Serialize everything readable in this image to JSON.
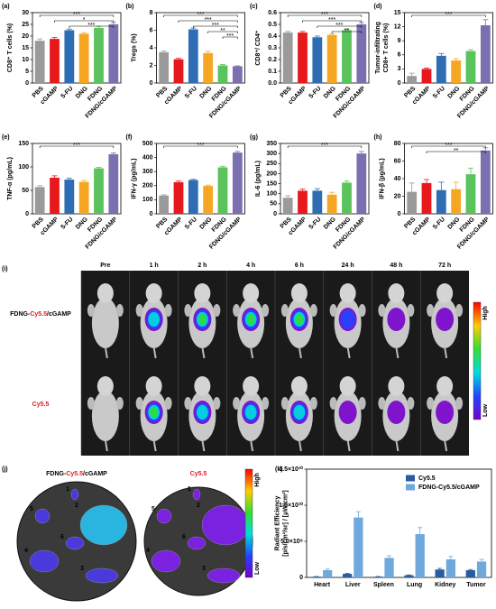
{
  "chart_data": [
    {
      "panel": "(a)",
      "type": "bar",
      "ylabel": "CD8⁺ T cells (%)",
      "categories": [
        "PBS",
        "cGAMP",
        "5-FU",
        "DNG",
        "FDNG",
        "FDNG/cGAMP"
      ],
      "colors": [
        "#9a9a9a",
        "#e8191c",
        "#2e6db4",
        "#f5a623",
        "#5bc35b",
        "#7b6fb0"
      ],
      "values": [
        18,
        18.8,
        22.5,
        21,
        23.5,
        25
      ],
      "errors": [
        0.8,
        0.6,
        0.5,
        0.5,
        0.6,
        0.8
      ],
      "ylim": [
        0,
        30
      ],
      "yticks": [
        0,
        5,
        10,
        15,
        20,
        25,
        30
      ],
      "annotations": [
        "***",
        "*",
        "***"
      ]
    },
    {
      "panel": "(b)",
      "type": "bar",
      "ylabel": "Tregs (%)",
      "categories": [
        "PBS",
        "cGAMP",
        "5-FU",
        "DNG",
        "FDNG",
        "FDNG/cGAMP"
      ],
      "colors": [
        "#9a9a9a",
        "#e8191c",
        "#2e6db4",
        "#f5a623",
        "#5bc35b",
        "#7b6fb0"
      ],
      "values": [
        3.5,
        2.7,
        6.1,
        3.4,
        2.0,
        1.9
      ],
      "errors": [
        0.15,
        0.1,
        0.15,
        0.2,
        0.1,
        0.05
      ],
      "ylim": [
        0,
        8
      ],
      "yticks": [
        0,
        2,
        4,
        6,
        8
      ],
      "annotations": [
        "***",
        "***",
        "***",
        "**",
        "***"
      ]
    },
    {
      "panel": "(c)",
      "type": "bar",
      "ylabel": "CD8⁺/ CD4⁺",
      "categories": [
        "PBS",
        "cGAMP",
        "5-FU",
        "DNG",
        "FDNG",
        "FDNG/cGAMP"
      ],
      "colors": [
        "#9a9a9a",
        "#e8191c",
        "#2e6db4",
        "#f5a623",
        "#5bc35b",
        "#7b6fb0"
      ],
      "values": [
        0.43,
        0.43,
        0.39,
        0.41,
        0.45,
        0.5
      ],
      "errors": [
        0.01,
        0.01,
        0.01,
        0.01,
        0.01,
        0.015
      ],
      "ylim": [
        0,
        0.6
      ],
      "yticks": [
        {
          "value": 0,
          "label": "0.0"
        },
        0.1,
        0.2,
        0.3,
        0.4,
        0.5,
        0.6
      ],
      "annotations": [
        "***",
        "***",
        "***",
        "**"
      ]
    },
    {
      "panel": "(d)",
      "type": "bar",
      "ylabel": [
        "Tumor-infiltrating",
        "CD8+ T cells (%)"
      ],
      "categories": [
        "PBS",
        "cGAMP",
        "5-FU",
        "DNG",
        "FDNG",
        "FDNG/cGAMP"
      ],
      "colors": [
        "#9a9a9a",
        "#e8191c",
        "#2e6db4",
        "#f5a623",
        "#5bc35b",
        "#7b6fb0"
      ],
      "values": [
        1.5,
        3,
        5.8,
        4.8,
        6.8,
        12.3
      ],
      "errors": [
        0.6,
        0.2,
        0.5,
        0.4,
        0.3,
        1.2
      ],
      "ylim": [
        0,
        15
      ],
      "yticks": [
        0,
        3,
        6,
        9,
        12,
        15
      ],
      "annotations": [
        "***"
      ]
    },
    {
      "panel": "(e)",
      "type": "bar",
      "ylabel": "TNF-α (pg/mL)",
      "categories": [
        "PBS",
        "cGAMP",
        "5-FU",
        "DNG",
        "FDNG",
        "FDNG/cGAMP"
      ],
      "colors": [
        "#9a9a9a",
        "#e8191c",
        "#2e6db4",
        "#f5a623",
        "#5bc35b",
        "#7b6fb0"
      ],
      "values": [
        57,
        77,
        73,
        68,
        97,
        127
      ],
      "errors": [
        3,
        4,
        3,
        3,
        2,
        3
      ],
      "ylim": [
        0,
        150
      ],
      "yticks": [
        0,
        50,
        100,
        150
      ],
      "annotations": [
        "***"
      ]
    },
    {
      "panel": "(f)",
      "type": "bar",
      "ylabel": "IFN-γ (pg/mL)",
      "categories": [
        "PBS",
        "cGAMP",
        "5-FU",
        "DNG",
        "FDNG",
        "FDNG/cGAMP"
      ],
      "colors": [
        "#9a9a9a",
        "#e8191c",
        "#2e6db4",
        "#f5a623",
        "#5bc35b",
        "#7b6fb0"
      ],
      "values": [
        130,
        225,
        240,
        198,
        330,
        435
      ],
      "errors": [
        5,
        8,
        5,
        6,
        8,
        8
      ],
      "ylim": [
        0,
        500
      ],
      "yticks": [
        0,
        100,
        200,
        300,
        400,
        500
      ],
      "annotations": [
        "***"
      ]
    },
    {
      "panel": "(g)",
      "type": "bar",
      "ylabel": "IL-6 (pg/mL)",
      "categories": [
        "PBS",
        "cGAMP",
        "5-FU",
        "DNG",
        "FDNG",
        "FDNG/cGAMP"
      ],
      "colors": [
        "#9a9a9a",
        "#e8191c",
        "#2e6db4",
        "#f5a623",
        "#5bc35b",
        "#7b6fb0"
      ],
      "values": [
        80,
        115,
        115,
        95,
        155,
        300
      ],
      "errors": [
        10,
        8,
        10,
        12,
        8,
        10
      ],
      "ylim": [
        0,
        350
      ],
      "yticks": [
        0,
        50,
        100,
        150,
        200,
        250,
        300,
        350
      ],
      "annotations": [
        "***"
      ]
    },
    {
      "panel": "(h)",
      "type": "bar",
      "ylabel": "IFN-β (pg/mL)",
      "categories": [
        "PBS",
        "cGAMP",
        "5-FU",
        "DNG",
        "FDNG",
        "FDNG/cGAMP"
      ],
      "colors": [
        "#9a9a9a",
        "#e8191c",
        "#2e6db4",
        "#f5a623",
        "#5bc35b",
        "#7b6fb0"
      ],
      "values": [
        25,
        35,
        27,
        28,
        45,
        72
      ],
      "errors": [
        10,
        4,
        9,
        8,
        7,
        3
      ],
      "ylim": [
        0,
        80
      ],
      "yticks": [
        0,
        20,
        40,
        60,
        80
      ],
      "annotations": [
        "***",
        "**"
      ]
    },
    {
      "panel": "(k)",
      "type": "grouped_bar",
      "ylabel": [
        "Radiant Efficiency",
        "[p/s/cm²/sr] / [μW/cm²]"
      ],
      "categories": [
        "Heart",
        "Liver",
        "Spleen",
        "Lung",
        "Kidney",
        "Tumor"
      ],
      "series": [
        {
          "name": "Cy5.5",
          "color": "#2a5d9f",
          "values": [
            100000000,
            500000000,
            100000000,
            300000000,
            1100000000,
            1000000000
          ],
          "errors": [
            30000000,
            60000000,
            30000000,
            50000000,
            150000000,
            100000000
          ]
        },
        {
          "name": "FDNG-Cy5.5/cGAMP",
          "color": "#6fa8dc",
          "values": [
            1000000000,
            8300000000,
            2700000000,
            6000000000,
            2500000000,
            2200000000
          ],
          "errors": [
            150000000,
            800000000,
            300000000,
            900000000,
            400000000,
            300000000
          ]
        }
      ],
      "ylim": [
        0,
        15000000000
      ],
      "yticks": [
        0,
        {
          "value": 5000000000,
          "label": "5.0×10⁹"
        },
        {
          "value": 10000000000,
          "label": "1.0×10¹⁰"
        },
        {
          "value": 15000000000,
          "label": "1.5×10¹⁰"
        }
      ],
      "legend": "upper right"
    }
  ],
  "imaging": {
    "panel": "(i)",
    "times": [
      "Pre",
      "1 h",
      "2 h",
      "4 h",
      "6 h",
      "24 h",
      "48 h",
      "72 h"
    ],
    "row_labels": [
      [
        "FDNG-",
        "Cy5.5",
        "/cGAMP"
      ],
      [
        "Cy5.5"
      ]
    ],
    "scale": [
      "High",
      "Low"
    ]
  },
  "organs": {
    "panel": "(j)",
    "titles": [
      [
        "FDNG-",
        "Cy5.5",
        "/cGAMP"
      ],
      [
        "Cy5.5"
      ]
    ],
    "organ_labels": [
      "1",
      "2",
      "3",
      "4",
      "5",
      "6"
    ],
    "scale": [
      "High",
      "Low"
    ]
  }
}
